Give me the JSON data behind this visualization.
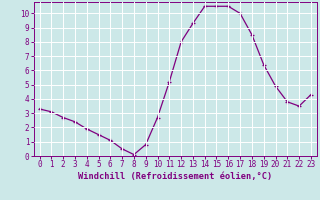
{
  "x": [
    0,
    1,
    2,
    3,
    4,
    5,
    6,
    7,
    8,
    9,
    10,
    11,
    12,
    13,
    14,
    15,
    16,
    17,
    18,
    19,
    20,
    21,
    22,
    23
  ],
  "y": [
    3.3,
    3.1,
    2.7,
    2.4,
    1.9,
    1.5,
    1.1,
    0.5,
    0.1,
    0.8,
    2.7,
    5.2,
    8.0,
    9.3,
    10.5,
    10.5,
    10.5,
    10.0,
    8.5,
    6.4,
    4.9,
    3.8,
    3.5,
    4.3
  ],
  "line_color": "#800080",
  "marker": "+",
  "marker_size": 3,
  "bg_color": "#cce8e8",
  "grid_color": "#ffffff",
  "xlabel": "Windchill (Refroidissement éolien,°C)",
  "xlabel_color": "#800080",
  "tick_color": "#800080",
  "xlim": [
    -0.5,
    23.5
  ],
  "ylim": [
    0,
    10.8
  ],
  "yticks": [
    0,
    1,
    2,
    3,
    4,
    5,
    6,
    7,
    8,
    9,
    10
  ],
  "xticks": [
    0,
    1,
    2,
    3,
    4,
    5,
    6,
    7,
    8,
    9,
    10,
    11,
    12,
    13,
    14,
    15,
    16,
    17,
    18,
    19,
    20,
    21,
    22,
    23
  ],
  "spine_color": "#800080"
}
